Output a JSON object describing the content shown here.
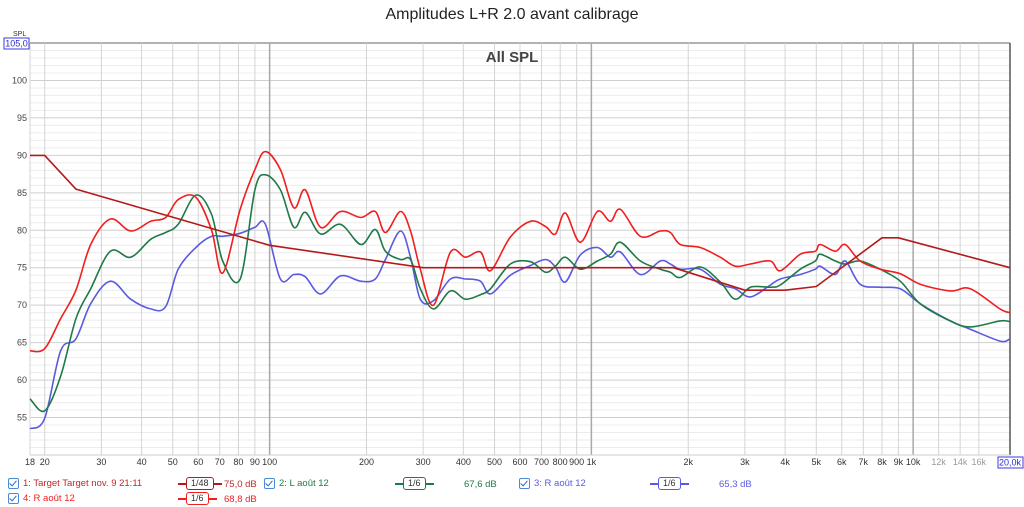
{
  "chart_data": {
    "type": "line",
    "title": "Amplitudes L+R 2.0 avant calibrage",
    "subtitle": "All SPL",
    "ylabel": "SPL",
    "ylim": [
      50,
      105
    ],
    "y_top_label": "105,0",
    "yticks": [
      55,
      60,
      65,
      70,
      75,
      80,
      85,
      90,
      95,
      100
    ],
    "xlim": [
      18,
      20000
    ],
    "xscale": "log",
    "xticks": [
      {
        "v": 18,
        "l": "18"
      },
      {
        "v": 20,
        "l": "20"
      },
      {
        "v": 30,
        "l": "30"
      },
      {
        "v": 40,
        "l": "40"
      },
      {
        "v": 50,
        "l": "50"
      },
      {
        "v": 60,
        "l": "60"
      },
      {
        "v": 70,
        "l": "70"
      },
      {
        "v": 80,
        "l": "80"
      },
      {
        "v": 90,
        "l": "90"
      },
      {
        "v": 100,
        "l": "100"
      },
      {
        "v": 200,
        "l": "200"
      },
      {
        "v": 300,
        "l": "300"
      },
      {
        "v": 400,
        "l": "400"
      },
      {
        "v": 500,
        "l": "500"
      },
      {
        "v": 600,
        "l": "600"
      },
      {
        "v": 700,
        "l": "700"
      },
      {
        "v": 800,
        "l": "800"
      },
      {
        "v": 900,
        "l": "900"
      },
      {
        "v": 1000,
        "l": "1k"
      },
      {
        "v": 2000,
        "l": "2k"
      },
      {
        "v": 3000,
        "l": "3k"
      },
      {
        "v": 4000,
        "l": "4k"
      },
      {
        "v": 5000,
        "l": "5k"
      },
      {
        "v": 6000,
        "l": "6k"
      },
      {
        "v": 7000,
        "l": "7k"
      },
      {
        "v": 8000,
        "l": "8k"
      },
      {
        "v": 9000,
        "l": "9k"
      },
      {
        "v": 10000,
        "l": "10k"
      },
      {
        "v": 12000,
        "l": "12k"
      },
      {
        "v": 14000,
        "l": "14k"
      },
      {
        "v": 16000,
        "l": "16k"
      }
    ],
    "x_end_label": "20,0k",
    "grid": true,
    "legend_placement": "bottom",
    "x": [
      18,
      20,
      22.4,
      25,
      27.8,
      32,
      37,
      42.7,
      47.5,
      52,
      59,
      66,
      71.5,
      81,
      90,
      97,
      108,
      119,
      129,
      144,
      166,
      192,
      213,
      229,
      255,
      274,
      294,
      323,
      365,
      406,
      452,
      486,
      560,
      647,
      720,
      773,
      830,
      924,
      1044,
      1146,
      1231,
      1420,
      1638,
      1760,
      1890,
      2180,
      2515,
      2800,
      3120,
      3600,
      3865,
      4460,
      4965,
      5140,
      5730,
      6150,
      6840,
      7900,
      9120,
      10520,
      13040,
      15040,
      18620,
      20000
    ],
    "series": [
      {
        "name": "1: Target Target nov. 9 21:11",
        "smoothing": "1/48",
        "level": "75,0 dB",
        "color": "#b41a1a",
        "x": [
          18,
          20,
          25,
          100,
          300,
          1000,
          1800,
          3000,
          4000,
          5000,
          8000,
          9000,
          20000
        ],
        "values": [
          90,
          90,
          85.5,
          78,
          75,
          75,
          75,
          72,
          72,
          72.5,
          79,
          79,
          75
        ]
      },
      {
        "name": "2: L août 12",
        "smoothing": "1/6",
        "level": "67,6 dB",
        "color": "#1e7a46",
        "values": [
          57.5,
          55.9,
          60.5,
          68.2,
          72.2,
          77.2,
          76.4,
          78.8,
          79.7,
          80.8,
          84.7,
          82.1,
          75.9,
          73.5,
          85.4,
          87.4,
          85.4,
          80.4,
          82.4,
          79.5,
          80.8,
          78.1,
          80.1,
          77.2,
          76.1,
          76.1,
          72.2,
          69.5,
          71.9,
          70.8,
          71.4,
          72.2,
          75.5,
          75.8,
          74.4,
          75.2,
          76.4,
          74.8,
          75.9,
          76.8,
          78.4,
          75.9,
          74.8,
          74.4,
          73.7,
          75.1,
          73.1,
          70.8,
          72.4,
          72.4,
          72.7,
          74.8,
          75.9,
          76.8,
          75.9,
          75.5,
          75.9,
          74.8,
          73.2,
          70.2,
          67.9,
          67.1,
          67.9,
          67.8
        ]
      },
      {
        "name": "3: R août 12",
        "smoothing": "1/6",
        "level": "65,3 dB",
        "color": "#5a5ae0",
        "values": [
          53.5,
          54.9,
          63.9,
          65.5,
          70.2,
          73.2,
          70.8,
          69.5,
          69.8,
          74.8,
          77.7,
          79.2,
          79.2,
          79.6,
          80.4,
          80.8,
          73.5,
          74.1,
          73.8,
          71.5,
          73.9,
          73.2,
          73.5,
          76.1,
          79.9,
          76.4,
          70.8,
          70.6,
          73.5,
          73.5,
          73.2,
          71.5,
          74,
          75.3,
          76.1,
          75.1,
          73.1,
          76.7,
          77.7,
          76.4,
          77.1,
          74.1,
          75.9,
          75.5,
          74.8,
          74.8,
          72.8,
          72.2,
          71.1,
          72.7,
          73.5,
          74.1,
          74.8,
          75.2,
          74.1,
          75.9,
          72.8,
          72.4,
          72.2,
          70.2,
          67.9,
          66.8,
          65.2,
          65.5
        ]
      },
      {
        "name": "4: R août 12",
        "smoothing": "1/6",
        "level": "68,8 dB",
        "color": "#f01e1e",
        "values": [
          63.9,
          64.2,
          68.2,
          72,
          78.1,
          81.5,
          79.9,
          81.2,
          81.7,
          84.1,
          84.4,
          80,
          74.3,
          82.8,
          88.1,
          90.5,
          88.1,
          83,
          85.4,
          80.4,
          82.5,
          81.7,
          82.5,
          79.7,
          82.5,
          79.9,
          74.8,
          70,
          77.1,
          76.4,
          77.1,
          74.6,
          79.1,
          81.2,
          80.5,
          79.5,
          82.3,
          78.4,
          82.5,
          81.2,
          82.8,
          79.2,
          79.9,
          79.7,
          78.1,
          77.7,
          76.4,
          75.2,
          75.5,
          75.9,
          74.6,
          76.8,
          77.2,
          78.1,
          77.2,
          78.1,
          75.9,
          74.8,
          74.2,
          72.8,
          71.9,
          72.2,
          69.5,
          69
        ]
      }
    ]
  }
}
